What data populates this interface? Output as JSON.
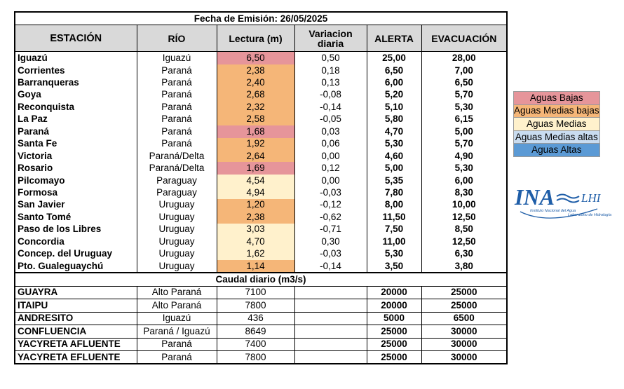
{
  "title": "Fecha de Emisión: 26/05/2025",
  "headers": {
    "estacion": "ESTACIÓN",
    "rio": "RÍO",
    "lectura": "Lectura (m)",
    "variacion_1": "Variacion",
    "variacion_2": "diaria",
    "alerta": "ALERTA",
    "evacuacion": "EVACUACIÓN"
  },
  "levels": [
    {
      "estacion": "Iguazú",
      "rio": "Iguazú",
      "lectura": "6,50",
      "variacion": "0,50",
      "alerta": "25,00",
      "evacuacion": "28,00",
      "nivel": "bajas"
    },
    {
      "estacion": "Corrientes",
      "rio": "Paraná",
      "lectura": "2,38",
      "variacion": "0,18",
      "alerta": "6,50",
      "evacuacion": "7,00",
      "nivel": "medbajas"
    },
    {
      "estacion": "Barranqueras",
      "rio": "Paraná",
      "lectura": "2,40",
      "variacion": "0,13",
      "alerta": "6,00",
      "evacuacion": "6,50",
      "nivel": "medbajas"
    },
    {
      "estacion": "Goya",
      "rio": "Paraná",
      "lectura": "2,68",
      "variacion": "-0,08",
      "alerta": "5,20",
      "evacuacion": "5,70",
      "nivel": "medbajas"
    },
    {
      "estacion": "Reconquista",
      "rio": "Paraná",
      "lectura": "2,32",
      "variacion": "-0,14",
      "alerta": "5,10",
      "evacuacion": "5,30",
      "nivel": "medbajas"
    },
    {
      "estacion": "La Paz",
      "rio": "Paraná",
      "lectura": "2,58",
      "variacion": "-0,05",
      "alerta": "5,80",
      "evacuacion": "6,15",
      "nivel": "medbajas"
    },
    {
      "estacion": "Paraná",
      "rio": "Paraná",
      "lectura": "1,68",
      "variacion": "0,03",
      "alerta": "4,70",
      "evacuacion": "5,00",
      "nivel": "bajas"
    },
    {
      "estacion": "Santa Fe",
      "rio": "Paraná",
      "lectura": "1,92",
      "variacion": "0,06",
      "alerta": "5,30",
      "evacuacion": "5,70",
      "nivel": "medbajas"
    },
    {
      "estacion": "Victoria",
      "rio": "Paraná/Delta",
      "lectura": "2,64",
      "variacion": "0,00",
      "alerta": "4,60",
      "evacuacion": "4,90",
      "nivel": "medbajas"
    },
    {
      "estacion": "Rosario",
      "rio": "Paraná/Delta",
      "lectura": "1,69",
      "variacion": "0,12",
      "alerta": "5,00",
      "evacuacion": "5,30",
      "nivel": "bajas"
    },
    {
      "estacion": "Pilcomayo",
      "rio": "Paraguay",
      "lectura": "4,54",
      "variacion": "0,00",
      "alerta": "5,35",
      "evacuacion": "6,00",
      "nivel": "medias"
    },
    {
      "estacion": "Formosa",
      "rio": "Paraguay",
      "lectura": "4,94",
      "variacion": "-0,03",
      "alerta": "7,80",
      "evacuacion": "8,30",
      "nivel": "medias"
    },
    {
      "estacion": "San Javier",
      "rio": "Uruguay",
      "lectura": "1,20",
      "variacion": "-0,12",
      "alerta": "8,00",
      "evacuacion": "10,00",
      "nivel": "medbajas"
    },
    {
      "estacion": "Santo Tomé",
      "rio": "Uruguay",
      "lectura": "2,38",
      "variacion": "-0,62",
      "alerta": "11,50",
      "evacuacion": "12,50",
      "nivel": "medbajas"
    },
    {
      "estacion": "Paso de los Libres",
      "rio": "Uruguay",
      "lectura": "3,03",
      "variacion": "-0,71",
      "alerta": "7,50",
      "evacuacion": "8,50",
      "nivel": "medias"
    },
    {
      "estacion": "Concordia",
      "rio": "Uruguay",
      "lectura": "4,70",
      "variacion": "0,30",
      "alerta": "11,00",
      "evacuacion": "12,50",
      "nivel": "medias"
    },
    {
      "estacion": "Concep. del Uruguay",
      "rio": "Uruguay",
      "lectura": "1,62",
      "variacion": "-0,03",
      "alerta": "5,30",
      "evacuacion": "6,30",
      "nivel": "medias"
    },
    {
      "estacion": "Pto. Gualeguaychú",
      "rio": "Uruguay",
      "lectura": "1,14",
      "variacion": "-0,14",
      "alerta": "3,50",
      "evacuacion": "3,80",
      "nivel": "medbajas"
    }
  ],
  "caudal_title": "Caudal diario (m3/s)",
  "caudal": [
    {
      "estacion": "GUAYRA",
      "rio": "Alto Paraná",
      "lectura": "7100",
      "alerta": "20000",
      "evacuacion": "25000"
    },
    {
      "estacion": "ITAIPU",
      "rio": "Alto Paraná",
      "lectura": "7800",
      "alerta": "20000",
      "evacuacion": "25000"
    },
    {
      "estacion": "ANDRESITO",
      "rio": "Iguazú",
      "lectura": "436",
      "alerta": "5000",
      "evacuacion": "6500"
    },
    {
      "estacion": "CONFLUENCIA",
      "rio": "Paraná / Iguazú",
      "lectura": "8649",
      "alerta": "25000",
      "evacuacion": "30000"
    },
    {
      "estacion": "YACYRETA AFLUENTE",
      "rio": "Paraná",
      "lectura": "7400",
      "alerta": "25000",
      "evacuacion": "30000"
    },
    {
      "estacion": "YACYRETA EFLUENTE",
      "rio": "Paraná",
      "lectura": "7800",
      "alerta": "25000",
      "evacuacion": "30000"
    }
  ],
  "legend": [
    {
      "key": "bajas",
      "label": "Aguas Bajas",
      "color": "#e6959a"
    },
    {
      "key": "medbajas",
      "label": "Aguas Medias bajas",
      "color": "#f5b678"
    },
    {
      "key": "medias",
      "label": "Aguas Medias",
      "color": "#fff1cc"
    },
    {
      "key": "medaltas",
      "label": "Aguas Medias altas",
      "color": "#c9dcf0"
    },
    {
      "key": "altas",
      "label": "Aguas Altas",
      "color": "#5b9ad5"
    }
  ],
  "logo": {
    "ina": "INA",
    "lhi": "LHI",
    "line1": "Instituto Nacional del Agua",
    "line2": "Laboratorio de Hidrología"
  }
}
